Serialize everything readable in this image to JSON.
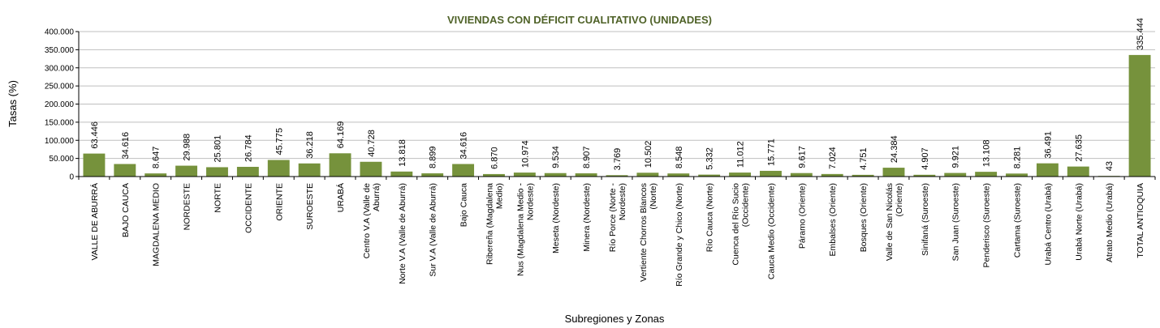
{
  "chart_data": {
    "type": "bar",
    "title": "VIVIENDAS CON DÉFICIT CUALITATIVO (UNIDADES)",
    "xlabel": "Subregiones y Zonas",
    "ylabel": "Tasas (%)",
    "ylim": [
      0,
      400000
    ],
    "yticks": [
      0,
      50000,
      100000,
      150000,
      200000,
      250000,
      300000,
      350000,
      400000
    ],
    "ytick_labels": [
      "0",
      "50.000",
      "100.000",
      "150.000",
      "200.000",
      "250.000",
      "300.000",
      "350.000",
      "400.000"
    ],
    "grid": true,
    "legend": "none",
    "colors": {
      "bar": "#76923c",
      "title": "#4f6228",
      "grid": "#bfbfbf",
      "axis": "#000000"
    },
    "categories": [
      [
        "VALLE DE ABURRÁ"
      ],
      [
        "BAJO CAUCA"
      ],
      [
        "MAGDALENA MEDIO"
      ],
      [
        "NORDESTE"
      ],
      [
        "NORTE"
      ],
      [
        "OCCIDENTE"
      ],
      [
        "ORIENTE"
      ],
      [
        "SUROESTE"
      ],
      [
        "URABÁ"
      ],
      [
        "Centro V.A (Valle de",
        "Aburrá)"
      ],
      [
        "Norte V.A (Valle de Aburrá)"
      ],
      [
        "Sur V.A (Valle de Aburrá)"
      ],
      [
        "Bajo Cauca"
      ],
      [
        "Ribereña  (Magdalena",
        "Medio)"
      ],
      [
        "Nus  (Magdalena Medio -",
        "Nordeste)"
      ],
      [
        "Meseta  (Nordeste)"
      ],
      [
        "Minera  (Nordeste)"
      ],
      [
        "Río Porce  (Norte -",
        "Nordeste)"
      ],
      [
        "Vertiente Chorros Blancos",
        "(Norte)"
      ],
      [
        "Río Grande y Chico  (Norte)"
      ],
      [
        "Río Cauca  (Norte)"
      ],
      [
        "Cuenca del Río Sucio",
        "(Occidente)"
      ],
      [
        "Cauca Medio  (Occidente)"
      ],
      [
        "Páramo  (Oriente)"
      ],
      [
        "Embalses  (Oriente)"
      ],
      [
        "Bosques  (Oriente)"
      ],
      [
        "Valle de San Nicolás",
        "(Oriente)"
      ],
      [
        "Sinifaná  (Suroeste)"
      ],
      [
        "San Juan  (Suroeste)"
      ],
      [
        "Penderisco  (Suroeste)"
      ],
      [
        "Cartama  (Suroeste)"
      ],
      [
        "Urabá Centro  (Urabá)"
      ],
      [
        "Urabá Norte  (Urabá)"
      ],
      [
        "Atrato Medio  (Urabá)"
      ],
      [
        "TOTAL ANTIOQUIA"
      ]
    ],
    "values": [
      63446,
      34616,
      8647,
      29988,
      25801,
      26784,
      45775,
      36218,
      64169,
      40728,
      13818,
      8899,
      34616,
      6870,
      10974,
      9534,
      8907,
      3769,
      10502,
      8548,
      5332,
      11012,
      15771,
      9617,
      7024,
      4751,
      24384,
      4907,
      9921,
      13108,
      8281,
      36491,
      27635,
      43,
      335444
    ],
    "value_labels": [
      "63.446",
      "34.616",
      "8.647",
      "29.988",
      "25.801",
      "26.784",
      "45.775",
      "36.218",
      "64.169",
      "40.728",
      "13.818",
      "8.899",
      "34.616",
      "6.870",
      "10.974",
      "9.534",
      "8.907",
      "3.769",
      "10.502",
      "8.548",
      "5.332",
      "11.012",
      "15.771",
      "9.617",
      "7.024",
      "4.751",
      "24.384",
      "4.907",
      "9.921",
      "13.108",
      "8.281",
      "36.491",
      "27.635",
      "43",
      "335.444"
    ]
  }
}
